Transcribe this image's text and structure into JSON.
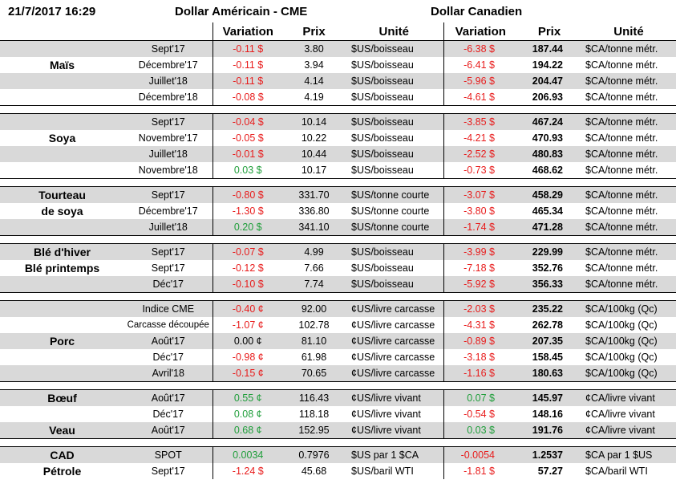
{
  "header": {
    "date": "21/7/2017 16:29",
    "usd": "Dollar Américain - CME",
    "cad": "Dollar Canadien"
  },
  "columns": [
    "Variation",
    "Prix",
    "Unité",
    "Variation",
    "Prix",
    "Unité"
  ],
  "groups": [
    {
      "rows": [
        {
          "cells": [
            "Sept'17",
            "-0.11 $",
            "3.80",
            "$US/boisseau",
            "-6.38 $",
            "187.44",
            "$CA/tonne métr."
          ]
        },
        {
          "label": "Maïs",
          "cells": [
            "Décembre'17",
            "-0.11 $",
            "3.94",
            "$US/boisseau",
            "-6.41 $",
            "194.22",
            "$CA/tonne métr."
          ]
        },
        {
          "cells": [
            "Juillet'18",
            "-0.11 $",
            "4.14",
            "$US/boisseau",
            "-5.96 $",
            "204.47",
            "$CA/tonne métr."
          ]
        },
        {
          "cells": [
            "Décembre'18",
            "-0.08 $",
            "4.19",
            "$US/boisseau",
            "-4.61 $",
            "206.93",
            "$CA/tonne métr."
          ]
        }
      ]
    },
    {
      "rows": [
        {
          "cells": [
            "Sept'17",
            "-0.04 $",
            "10.14",
            "$US/boisseau",
            "-3.85 $",
            "467.24",
            "$CA/tonne métr."
          ]
        },
        {
          "label": "Soya",
          "cells": [
            "Novembre'17",
            "-0.05 $",
            "10.22",
            "$US/boisseau",
            "-4.21 $",
            "470.93",
            "$CA/tonne métr."
          ]
        },
        {
          "cells": [
            "Juillet'18",
            "-0.01 $",
            "10.44",
            "$US/boisseau",
            "-2.52 $",
            "480.83",
            "$CA/tonne métr."
          ]
        },
        {
          "cells": [
            "Novembre'18",
            "0.03 $",
            "10.17",
            "$US/boisseau",
            "-0.73 $",
            "468.62",
            "$CA/tonne métr."
          ]
        }
      ]
    },
    {
      "rows": [
        {
          "label": "Tourteau",
          "cells": [
            "Sept'17",
            "-0.80 $",
            "331.70",
            "$US/tonne courte",
            "-3.07 $",
            "458.29",
            "$CA/tonne métr."
          ]
        },
        {
          "label": "de soya",
          "cells": [
            "Décembre'17",
            "-1.30 $",
            "336.80",
            "$US/tonne courte",
            "-3.80 $",
            "465.34",
            "$CA/tonne métr."
          ]
        },
        {
          "cells": [
            "Juillet'18",
            "0.20 $",
            "341.10",
            "$US/tonne courte",
            "-1.74 $",
            "471.28",
            "$CA/tonne métr."
          ]
        }
      ]
    },
    {
      "rows": [
        {
          "label": "Blé d'hiver",
          "cells": [
            "Sept'17",
            "-0.07 $",
            "4.99",
            "$US/boisseau",
            "-3.99 $",
            "229.99",
            "$CA/tonne métr."
          ]
        },
        {
          "label": "Blé printemps",
          "cells": [
            "Sept'17",
            "-0.12 $",
            "7.66",
            "$US/boisseau",
            "-7.18 $",
            "352.76",
            "$CA/tonne métr."
          ]
        },
        {
          "cells": [
            "Déc'17",
            "-0.10 $",
            "7.74",
            "$US/boisseau",
            "-5.92 $",
            "356.33",
            "$CA/tonne métr."
          ]
        }
      ]
    },
    {
      "rows": [
        {
          "cells": [
            "Indice CME",
            "-0.40 ¢",
            "92.00",
            "¢US/livre carcasse",
            "-2.03 $",
            "235.22",
            "$CA/100kg (Qc)"
          ]
        },
        {
          "cells": [
            "Carcasse découpée",
            "-1.07 ¢",
            "102.78",
            "¢US/livre carcasse",
            "-4.31 $",
            "262.78",
            "$CA/100kg (Qc)"
          ]
        },
        {
          "label": "Porc",
          "cells": [
            "Août'17",
            "0.00 ¢",
            "81.10",
            "¢US/livre carcasse",
            "-0.89 $",
            "207.35",
            "$CA/100kg (Qc)"
          ]
        },
        {
          "cells": [
            "Déc'17",
            "-0.98 ¢",
            "61.98",
            "¢US/livre carcasse",
            "-3.18 $",
            "158.45",
            "$CA/100kg (Qc)"
          ]
        },
        {
          "cells": [
            "Avril'18",
            "-0.15 ¢",
            "70.65",
            "¢US/livre carcasse",
            "-1.16 $",
            "180.63",
            "$CA/100kg (Qc)"
          ]
        }
      ]
    },
    {
      "rows": [
        {
          "label": "Bœuf",
          "cells": [
            "Août'17",
            "0.55 ¢",
            "116.43",
            "¢US/livre vivant",
            "0.07 $",
            "145.97",
            "¢CA/livre vivant"
          ]
        },
        {
          "cells": [
            "Déc'17",
            "0.08 ¢",
            "118.18",
            "¢US/livre vivant",
            "-0.54 $",
            "148.16",
            "¢CA/livre vivant"
          ]
        },
        {
          "label": "Veau",
          "cells": [
            "Août'17",
            "0.68 ¢",
            "152.95",
            "¢US/livre vivant",
            "0.03 $",
            "191.76",
            "¢CA/livre vivant"
          ]
        }
      ]
    },
    {
      "rows": [
        {
          "label": "CAD",
          "cells": [
            "SPOT",
            "0.0034",
            "0.7976",
            "$US par 1 $CA",
            "-0.0054",
            "1.2537",
            "$CA par 1 $US"
          ]
        },
        {
          "label": "Pétrole",
          "cells": [
            "Sept'17",
            "-1.24 $",
            "45.68",
            "$US/baril WTI",
            "-1.81 $",
            "57.27",
            "$CA/baril WTI"
          ]
        }
      ]
    }
  ]
}
